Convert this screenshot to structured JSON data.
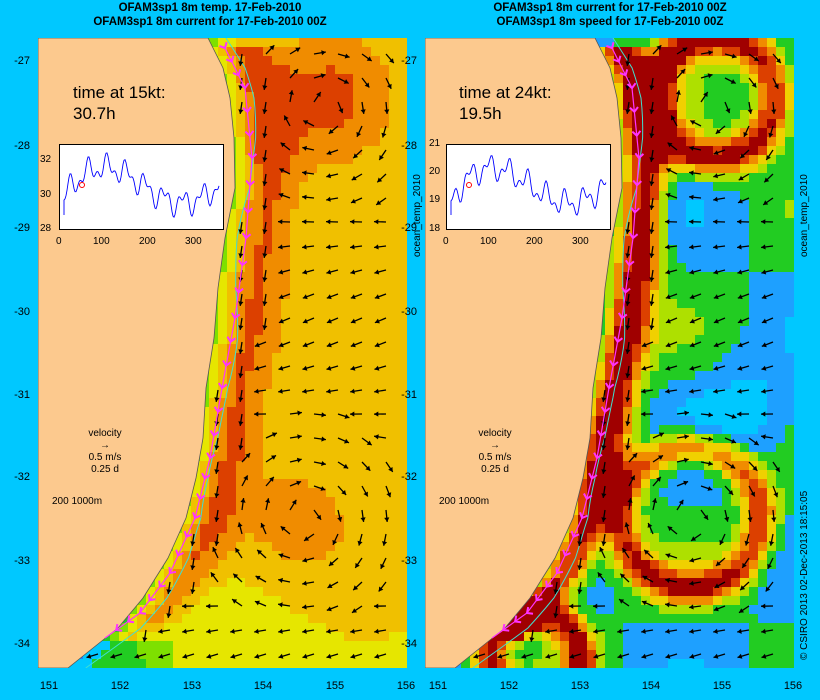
{
  "left_panel": {
    "title_line1": "OFAM3sp1 8m temp. 17-Feb-2010",
    "title_line2": "OFAM3sp1 8m current for 17-Feb-2010 00Z",
    "time_label": "time at 15kt:",
    "time_value": "30.7h",
    "inset_yticks": [
      "32",
      "30",
      "28"
    ],
    "inset_xticks": [
      "0",
      "100",
      "200",
      "300"
    ],
    "side_label": "ocean_temp_2010",
    "scheme": "temp"
  },
  "right_panel": {
    "title_line1": "OFAM3sp1 8m current for 17-Feb-2010 00Z",
    "title_line2": "OFAM3sp1 8m speed for 17-Feb-2010 00Z",
    "time_label": "time at 24kt:",
    "time_value": "19.5h",
    "inset_yticks": [
      "21",
      "20",
      "19",
      "18"
    ],
    "inset_xticks": [
      "0",
      "100",
      "200",
      "300"
    ],
    "side_label": "ocean_temp_2010",
    "scheme": "speed"
  },
  "velocity_legend": {
    "label": "velocity",
    "speed": "0.5 m/s",
    "duration": "0.25 d"
  },
  "depth_legend": {
    "label": "200  1000m"
  },
  "latitude_ticks": [
    "-27",
    "-28",
    "-29",
    "-30",
    "-31",
    "-32",
    "-33",
    "-34"
  ],
  "longitude_ticks": [
    "151",
    "152",
    "153",
    "154",
    "155",
    "156"
  ],
  "copyright": "© CSIRO 2013   02-Dec-2013 18:15:05",
  "colors": {
    "background": "#00c8ff",
    "land": "#fcc98e",
    "route": "#ff33ff",
    "contour": "#40e0d0",
    "temp_palette": [
      "#1e7bff",
      "#00c8ff",
      "#22cc22",
      "#7ee000",
      "#e6e600",
      "#f0c000",
      "#f08c00",
      "#dc4000"
    ],
    "speed_palette": [
      "#00c8ff",
      "#1ea0ff",
      "#22cc22",
      "#aee000",
      "#f0d000",
      "#f08c00",
      "#dc4000",
      "#a00000"
    ]
  }
}
